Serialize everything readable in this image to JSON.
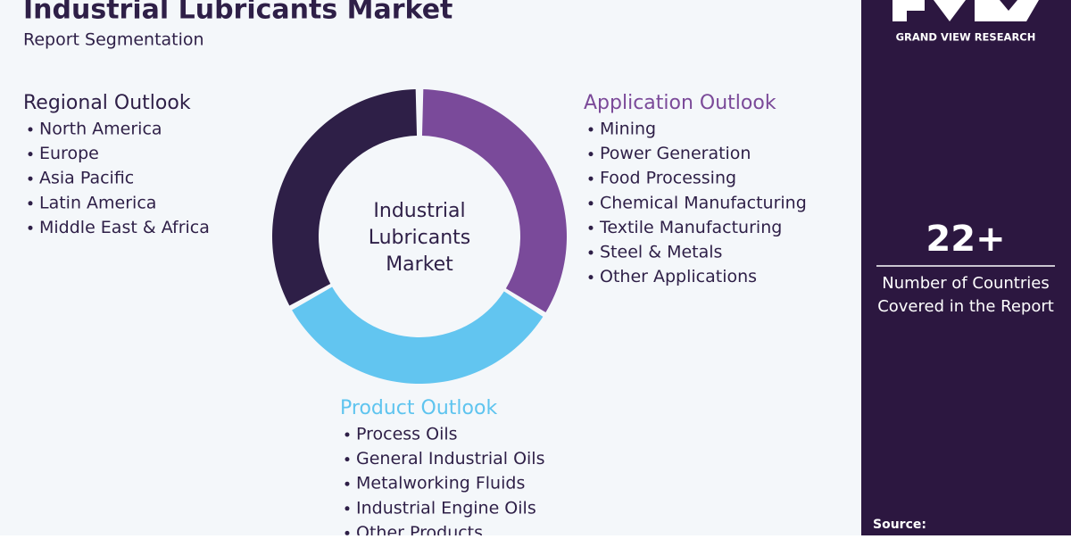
{
  "header": {
    "title": "Industrial Lubricants Market",
    "subtitle": "Report Segmentation"
  },
  "center_label": [
    "Industrial",
    "Lubricants",
    "Market"
  ],
  "sections": [
    {
      "title": "Regional Outlook",
      "items": [
        "North America",
        "Europe",
        "Asia Pacific",
        "Latin America",
        "Middle East & Africa"
      ]
    },
    {
      "title": "Application Outlook",
      "items": [
        "Mining",
        "Power Generation",
        "Food Processing",
        "Chemical Manufacturing",
        "Textile Manufacturing",
        "Steel & Metals",
        "Other Applications"
      ]
    },
    {
      "title": "Product Outlook",
      "items": [
        "Process Oils",
        "General Industrial Oils",
        "Metalworking Fluids",
        "Industrial Engine Oils",
        "Other Products"
      ]
    }
  ],
  "side_panel": {
    "brand": "GRAND VIEW RESEARCH",
    "stat": "22+",
    "stat_description": [
      "Number of Countries",
      "Covered in the Report"
    ],
    "source": "Source:"
  }
}
